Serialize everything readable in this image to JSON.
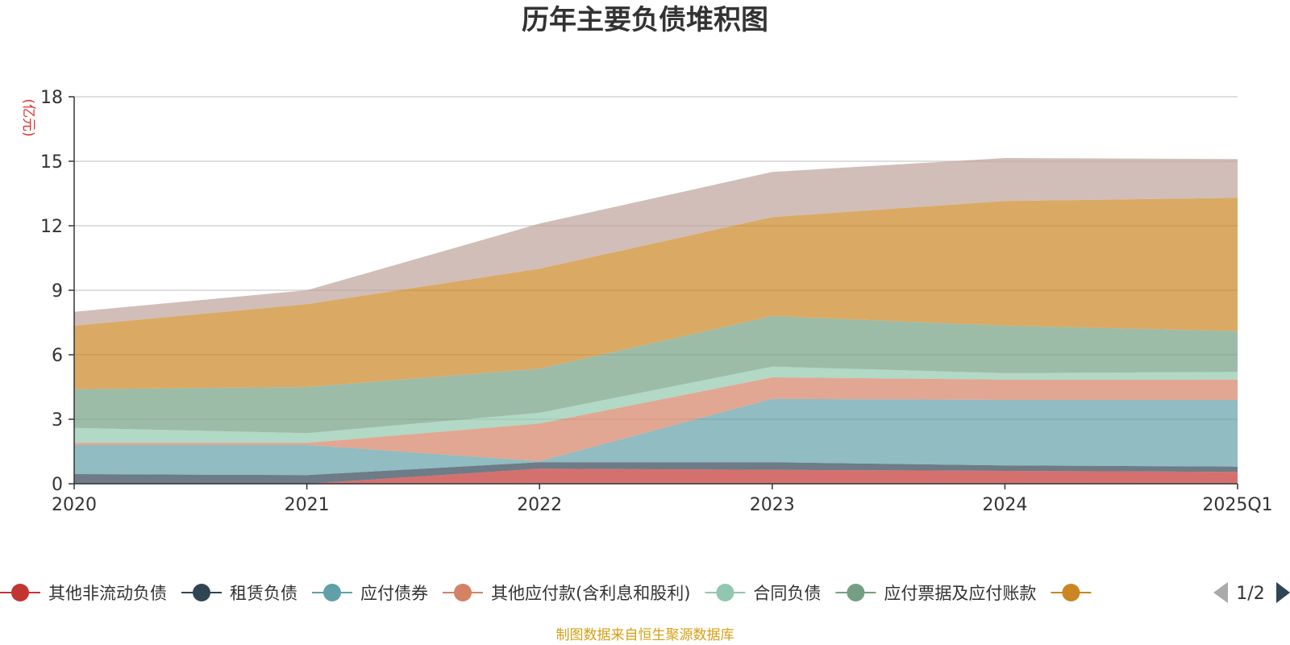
{
  "chart_data": {
    "type": "area",
    "stacked": true,
    "title": "历年主要负债堆积图",
    "unit_label": "(亿元)",
    "categories": [
      "2020",
      "2021",
      "2022",
      "2023",
      "2024",
      "2025Q1"
    ],
    "ylim": [
      0,
      18
    ],
    "yticks": [
      "0",
      "3",
      "6",
      "9",
      "12",
      "15",
      "18"
    ],
    "grid": true,
    "series": [
      {
        "name": "其他非流动负债",
        "color": "#c23531",
        "values": [
          0.0,
          0.0,
          0.7,
          0.65,
          0.6,
          0.55
        ]
      },
      {
        "name": "租赁负债",
        "color": "#2f4554",
        "values": [
          0.45,
          0.4,
          0.3,
          0.35,
          0.25,
          0.25
        ]
      },
      {
        "name": "应付债券",
        "color": "#61a0a8",
        "values": [
          1.35,
          1.4,
          0.05,
          2.95,
          3.05,
          3.1
        ]
      },
      {
        "name": "其他应付款(含利息和股利)",
        "color": "#d48265",
        "values": [
          0.1,
          0.1,
          1.75,
          1.0,
          0.95,
          0.95
        ]
      },
      {
        "name": "合同负债",
        "color": "#91c7ae",
        "values": [
          0.7,
          0.45,
          0.5,
          0.5,
          0.3,
          0.35
        ]
      },
      {
        "name": "应付票据及应付账款",
        "color": "#749f83",
        "values": [
          1.8,
          2.15,
          2.05,
          2.35,
          2.2,
          1.9
        ]
      },
      {
        "name": "",
        "color": "#ca8622",
        "values": [
          2.95,
          3.85,
          4.65,
          4.6,
          5.8,
          6.2
        ]
      },
      {
        "name": "",
        "color": "#bda29a",
        "values": [
          0.65,
          0.65,
          2.1,
          2.1,
          2.0,
          1.8
        ]
      }
    ],
    "legend": {
      "items": [
        "其他非流动负债",
        "租赁负债",
        "应付债券",
        "其他应付款(含利息和股利)",
        "合同负债",
        "应付票据及应付账款",
        ""
      ],
      "colors": [
        "#c23531",
        "#2f4554",
        "#61a0a8",
        "#d48265",
        "#91c7ae",
        "#749f83",
        "#ca8622"
      ],
      "page": "1/2",
      "placement": "bottom"
    },
    "footer": "制图数据来自恒生聚源数据库"
  }
}
